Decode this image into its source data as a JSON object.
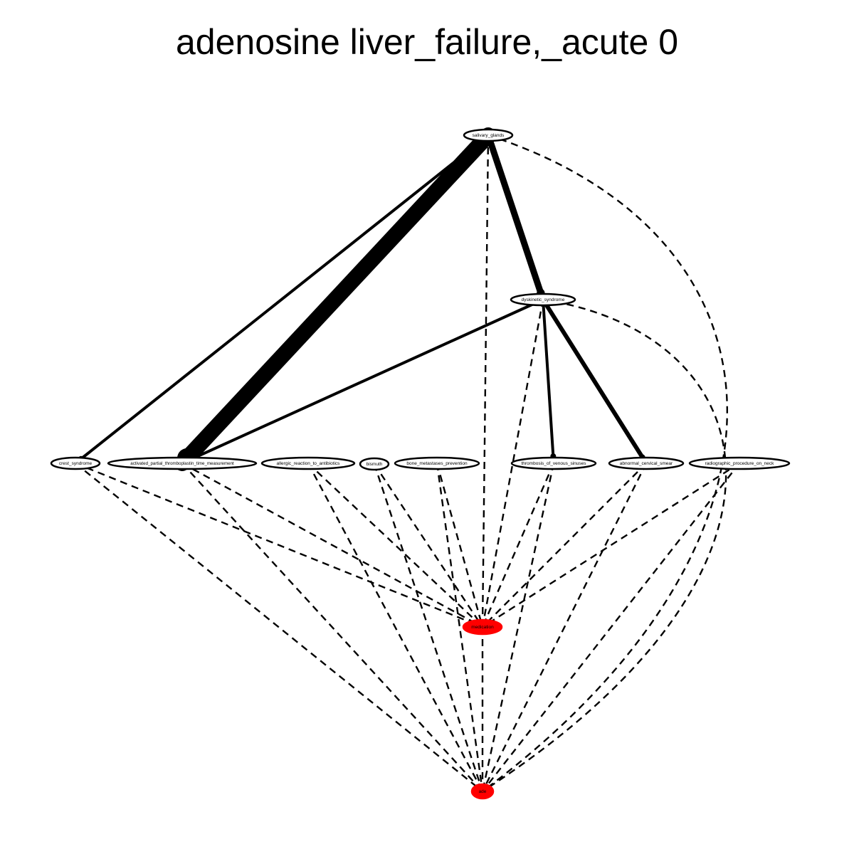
{
  "title": "adenosine liver_failure,_acute 0",
  "nodes": [
    {
      "id": "salivary_glands",
      "label": "salivary_glands",
      "fill": "#ffffff"
    },
    {
      "id": "dyskinetic_syndrome",
      "label": "dyskinetic_syndrome",
      "fill": "#ffffff"
    },
    {
      "id": "crest_syndrome",
      "label": "crest_syndrome",
      "fill": "#ffffff"
    },
    {
      "id": "aptt",
      "label": "activated_partial_thromboplastin_time_measurement",
      "fill": "#ffffff"
    },
    {
      "id": "allergic",
      "label": "allergic_reaction_to_antibiotics",
      "fill": "#ffffff"
    },
    {
      "id": "bismuth",
      "label": "bismuth",
      "fill": "#ffffff"
    },
    {
      "id": "bone",
      "label": "bone_metastases_prevention",
      "fill": "#ffffff"
    },
    {
      "id": "thrombosis",
      "label": "thrombosis_of_venous_sinuses",
      "fill": "#ffffff"
    },
    {
      "id": "cervical",
      "label": "abnormal_cervical_smear",
      "fill": "#ffffff"
    },
    {
      "id": "radiographic",
      "label": "radiographic_procedure_on_neck",
      "fill": "#ffffff"
    },
    {
      "id": "medication",
      "label": "medication",
      "fill": "#ff0000"
    },
    {
      "id": "ade",
      "label": "ade",
      "fill": "#ff0000"
    }
  ],
  "edges": [
    {
      "from": "salivary_glands",
      "to": "crest_syndrome",
      "style": "solid",
      "weight": 1
    },
    {
      "from": "salivary_glands",
      "to": "aptt",
      "style": "solid",
      "weight": 5
    },
    {
      "from": "salivary_glands",
      "to": "dyskinetic_syndrome",
      "style": "solid",
      "weight": 3
    },
    {
      "from": "dyskinetic_syndrome",
      "to": "aptt",
      "style": "solid",
      "weight": 1
    },
    {
      "from": "dyskinetic_syndrome",
      "to": "thrombosis",
      "style": "solid",
      "weight": 1
    },
    {
      "from": "dyskinetic_syndrome",
      "to": "cervical",
      "style": "solid",
      "weight": 2
    },
    {
      "from": "salivary_glands",
      "to": "medication",
      "style": "dashed",
      "weight": 0
    },
    {
      "from": "salivary_glands",
      "to": "ade",
      "style": "dashed",
      "weight": 0
    },
    {
      "from": "dyskinetic_syndrome",
      "to": "medication",
      "style": "dashed",
      "weight": 0
    },
    {
      "from": "dyskinetic_syndrome",
      "to": "ade",
      "style": "dashed",
      "weight": 0
    },
    {
      "from": "crest_syndrome",
      "to": "medication",
      "style": "dashed",
      "weight": 0
    },
    {
      "from": "crest_syndrome",
      "to": "ade",
      "style": "dashed",
      "weight": 0
    },
    {
      "from": "aptt",
      "to": "medication",
      "style": "dashed",
      "weight": 0
    },
    {
      "from": "aptt",
      "to": "ade",
      "style": "dashed",
      "weight": 0
    },
    {
      "from": "allergic",
      "to": "medication",
      "style": "dashed",
      "weight": 0
    },
    {
      "from": "allergic",
      "to": "ade",
      "style": "dashed",
      "weight": 0
    },
    {
      "from": "bismuth",
      "to": "medication",
      "style": "dashed",
      "weight": 0
    },
    {
      "from": "bismuth",
      "to": "ade",
      "style": "dashed",
      "weight": 0
    },
    {
      "from": "bone",
      "to": "medication",
      "style": "dashed",
      "weight": 0
    },
    {
      "from": "bone",
      "to": "ade",
      "style": "dashed",
      "weight": 0
    },
    {
      "from": "thrombosis",
      "to": "medication",
      "style": "dashed",
      "weight": 0
    },
    {
      "from": "thrombosis",
      "to": "ade",
      "style": "dashed",
      "weight": 0
    },
    {
      "from": "cervical",
      "to": "medication",
      "style": "dashed",
      "weight": 0
    },
    {
      "from": "cervical",
      "to": "ade",
      "style": "dashed",
      "weight": 0
    },
    {
      "from": "radiographic",
      "to": "medication",
      "style": "dashed",
      "weight": 0
    },
    {
      "from": "radiographic",
      "to": "ade",
      "style": "dashed",
      "weight": 0
    },
    {
      "from": "medication",
      "to": "ade",
      "style": "dashed",
      "weight": 0
    }
  ]
}
